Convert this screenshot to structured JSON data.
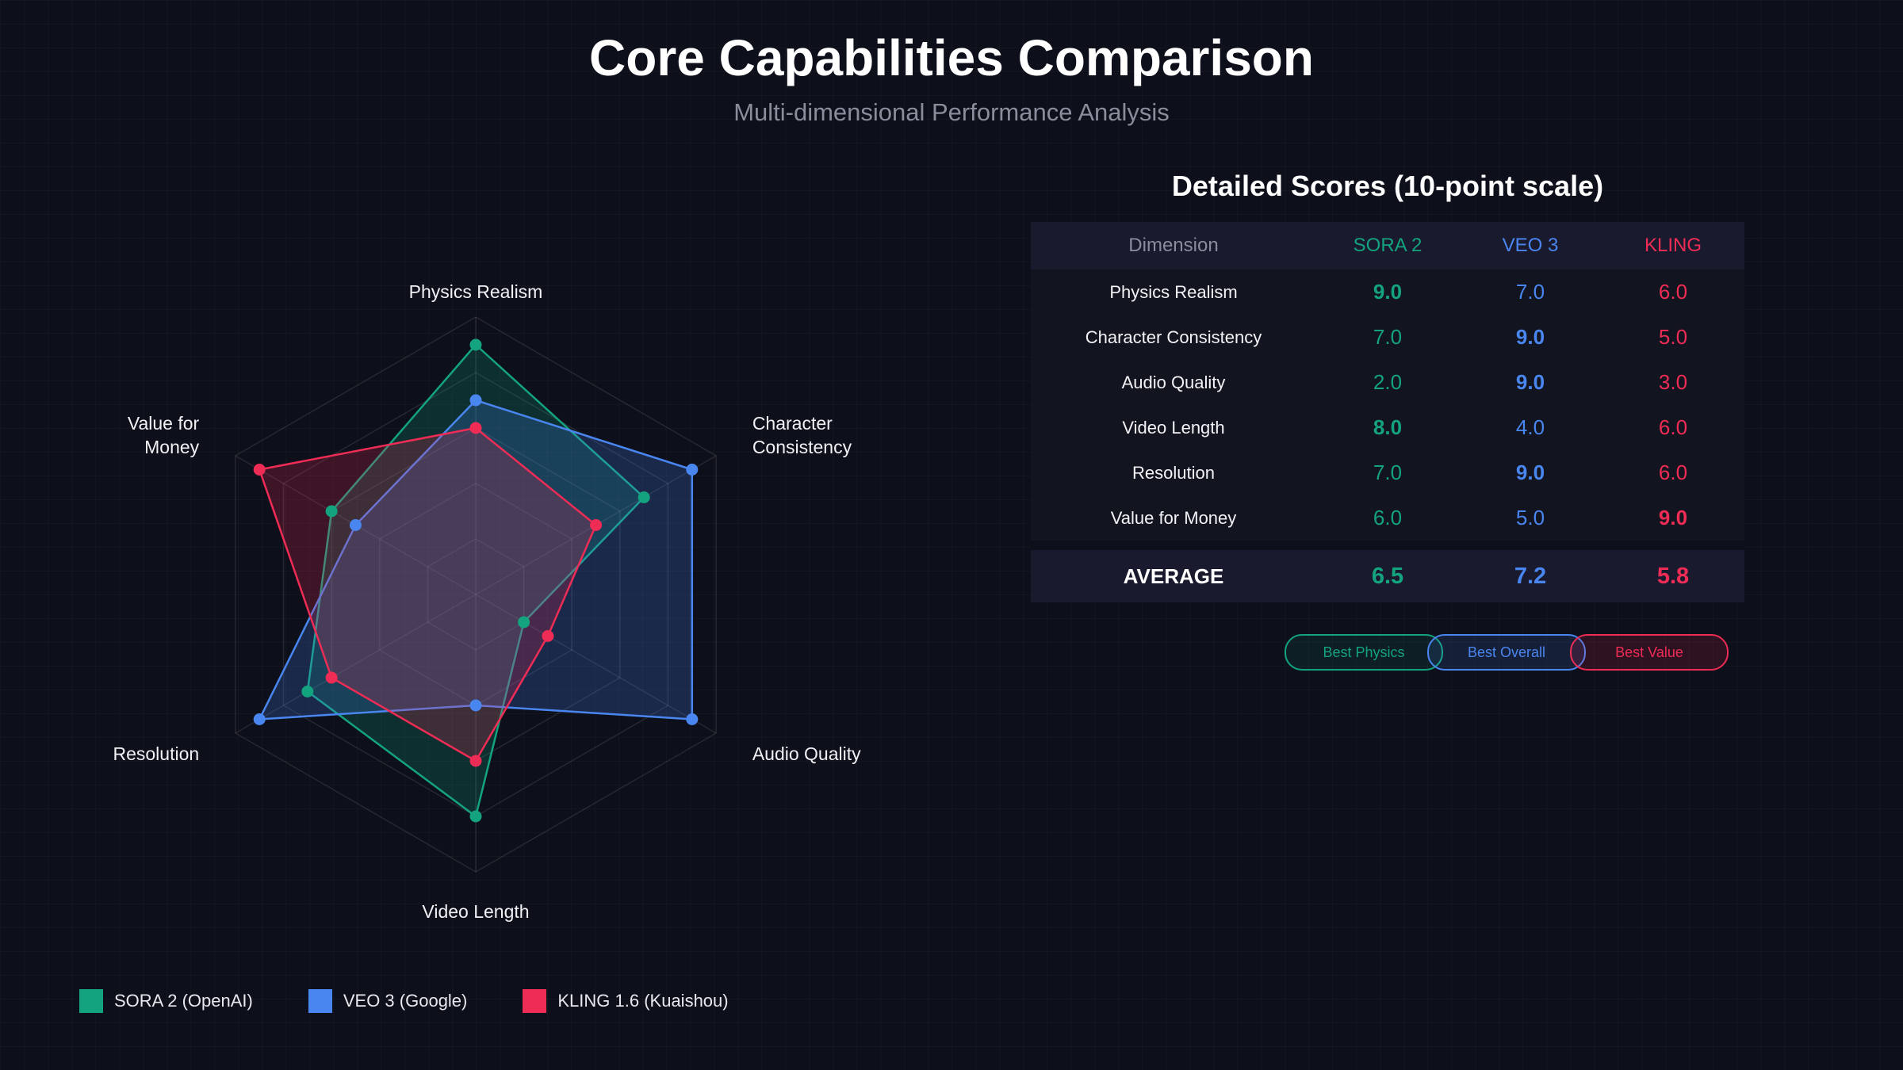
{
  "title": "Core Capabilities Comparison",
  "subtitle": "Multi-dimensional Performance Analysis",
  "chart_data": {
    "type": "radar",
    "max_value": 10,
    "grid_levels": 5,
    "axes": [
      "Physics Realism",
      "Character Consistency",
      "Audio Quality",
      "Video Length",
      "Resolution",
      "Value for Money"
    ],
    "axis_label_lines": [
      [
        "Physics Realism"
      ],
      [
        "Character",
        "Consistency"
      ],
      [
        "Audio Quality"
      ],
      [
        "Video Length"
      ],
      [
        "Resolution"
      ],
      [
        "Value for",
        "Money"
      ]
    ],
    "series": [
      {
        "name": "SORA 2 (OpenAI)",
        "color": "#14a37f",
        "values": [
          9.0,
          7.0,
          2.0,
          8.0,
          7.0,
          6.0
        ]
      },
      {
        "name": "VEO 3 (Google)",
        "color": "#4a86f0",
        "values": [
          7.0,
          9.0,
          9.0,
          4.0,
          9.0,
          5.0
        ]
      },
      {
        "name": "KLING 1.6 (Kuaishou)",
        "color": "#ee2c55",
        "values": [
          6.0,
          5.0,
          3.0,
          6.0,
          6.0,
          9.0
        ]
      }
    ],
    "legend_position": "bottom-left"
  },
  "table": {
    "title": "Detailed Scores (10-point scale)",
    "headers": {
      "dimension": "Dimension",
      "sora": "SORA 2",
      "veo": "VEO 3",
      "kling": "KLING"
    },
    "rows": [
      {
        "dimension": "Physics Realism",
        "sora": "9.0",
        "veo": "7.0",
        "kling": "6.0",
        "best": "sora"
      },
      {
        "dimension": "Character Consistency",
        "sora": "7.0",
        "veo": "9.0",
        "kling": "5.0",
        "best": "veo"
      },
      {
        "dimension": "Audio Quality",
        "sora": "2.0",
        "veo": "9.0",
        "kling": "3.0",
        "best": "veo"
      },
      {
        "dimension": "Video Length",
        "sora": "8.0",
        "veo": "4.0",
        "kling": "6.0",
        "best": "sora"
      },
      {
        "dimension": "Resolution",
        "sora": "7.0",
        "veo": "9.0",
        "kling": "6.0",
        "best": "veo"
      },
      {
        "dimension": "Value for Money",
        "sora": "6.0",
        "veo": "5.0",
        "kling": "9.0",
        "best": "kling"
      }
    ],
    "average": {
      "label": "AVERAGE",
      "sora": "6.5",
      "veo": "7.2",
      "kling": "5.8"
    }
  },
  "badges": {
    "sora": "Best Physics",
    "veo": "Best Overall",
    "kling": "Best Value"
  },
  "colors": {
    "sora": "#14a37f",
    "veo": "#4a86f0",
    "kling": "#ee2c55",
    "background": "#0d0f1a"
  }
}
